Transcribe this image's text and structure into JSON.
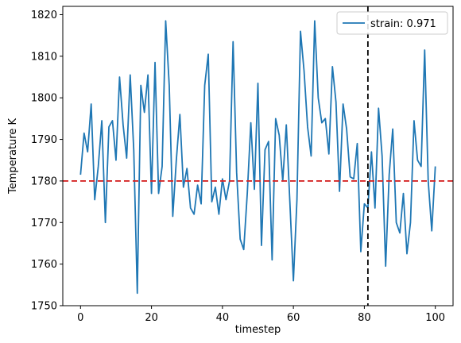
{
  "chart_data": {
    "type": "line",
    "xlabel": "timestep",
    "ylabel": "Temperature K",
    "xlim": [
      -5,
      105
    ],
    "ylim": [
      1750,
      1822
    ],
    "xticks": [
      0,
      20,
      40,
      60,
      80,
      100
    ],
    "yticks": [
      1750,
      1760,
      1770,
      1780,
      1790,
      1800,
      1810,
      1820
    ],
    "grid": false,
    "legend_position": "upper right",
    "series": [
      {
        "name": "strain: 0.971",
        "color": "#1f77b4",
        "x": [
          0,
          1,
          2,
          3,
          4,
          5,
          6,
          7,
          8,
          9,
          10,
          11,
          12,
          13,
          14,
          15,
          16,
          17,
          18,
          19,
          20,
          21,
          22,
          23,
          24,
          25,
          26,
          27,
          28,
          29,
          30,
          31,
          32,
          33,
          34,
          35,
          36,
          37,
          38,
          39,
          40,
          41,
          42,
          43,
          44,
          45,
          46,
          47,
          48,
          49,
          50,
          51,
          52,
          53,
          54,
          55,
          56,
          57,
          58,
          59,
          60,
          61,
          62,
          63,
          64,
          65,
          66,
          67,
          68,
          69,
          70,
          71,
          72,
          73,
          74,
          75,
          76,
          77,
          78,
          79,
          80,
          81,
          82,
          83,
          84,
          85,
          86,
          87,
          88,
          89,
          90,
          91,
          92,
          93,
          94,
          95,
          96,
          97,
          98,
          99,
          100
        ],
        "values": [
          1781.5,
          1791.5,
          1787,
          1798.5,
          1775.5,
          1783.5,
          1794.5,
          1770,
          1793,
          1794.5,
          1785,
          1805,
          1793.5,
          1785.5,
          1805.5,
          1787.5,
          1753,
          1803,
          1796.5,
          1805.5,
          1777,
          1808.5,
          1777,
          1783.5,
          1818.5,
          1803,
          1771.5,
          1785,
          1796,
          1778.5,
          1783,
          1773.5,
          1772,
          1779,
          1774.5,
          1803,
          1810.5,
          1775,
          1778.5,
          1772,
          1780.5,
          1775.5,
          1780,
          1813.5,
          1782,
          1766,
          1763.5,
          1777,
          1794,
          1778,
          1803.5,
          1764.5,
          1787.5,
          1789.5,
          1761,
          1795,
          1791,
          1780,
          1793.5,
          1775,
          1756,
          1775.5,
          1816,
          1806.5,
          1793,
          1786,
          1818.5,
          1800,
          1794,
          1795,
          1786.5,
          1807.5,
          1799,
          1777.5,
          1798.5,
          1792.5,
          1781,
          1780.5,
          1789,
          1763,
          1774.5,
          1773.5,
          1787,
          1773.5,
          1797.5,
          1786,
          1759.5,
          1781.5,
          1792.5,
          1770,
          1767.5,
          1777,
          1762.5,
          1770,
          1794.5,
          1785,
          1783.5,
          1811.5,
          1780,
          1768,
          1783.5
        ]
      }
    ],
    "reference_lines": [
      {
        "orientation": "horizontal",
        "value": 1780,
        "color": "#d62728",
        "style": "dashed"
      },
      {
        "orientation": "vertical",
        "value": 81,
        "color": "#000000",
        "style": "dashed"
      }
    ]
  }
}
